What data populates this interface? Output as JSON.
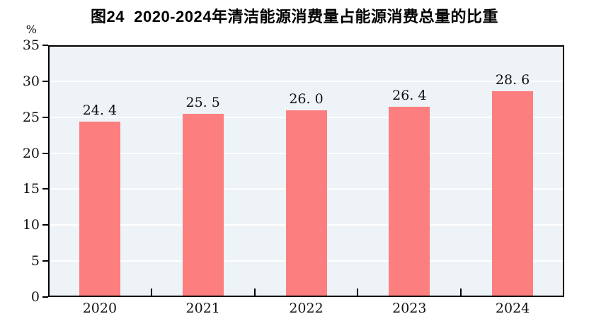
{
  "page": {
    "background_color": "#ffffff"
  },
  "title": "图24  2020-2024年清洁能源消费量占能源消费总量的比重",
  "y_axis": {
    "unit": "%",
    "ticks": [
      0,
      5,
      10,
      15,
      20,
      25,
      30,
      35
    ]
  },
  "chart_data": {
    "type": "bar",
    "title": "图24  2020-2024年清洁能源消费量占能源消费总量的比重",
    "categories": [
      "2020",
      "2021",
      "2022",
      "2023",
      "2024"
    ],
    "values": [
      24.4,
      25.5,
      26.0,
      26.4,
      28.6
    ],
    "value_labels": [
      "24. 4",
      "25. 5",
      "26. 0",
      "26. 4",
      "28. 6"
    ],
    "xlabel": "",
    "ylabel": "%",
    "ylim": [
      0,
      35
    ],
    "ytick_step": 5,
    "grid": true,
    "legend_position": "none",
    "colors": {
      "bar": "#fc7e7e",
      "plot_background": "#edf3f6",
      "gridline": "#ffffff",
      "axis": "#000000",
      "text": "#111111"
    }
  }
}
